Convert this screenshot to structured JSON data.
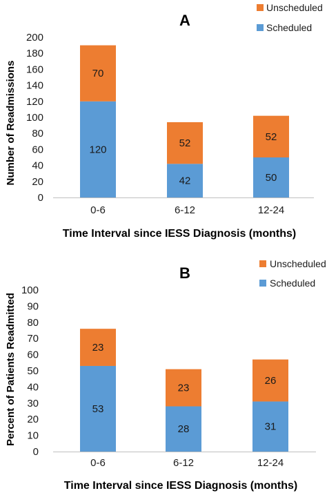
{
  "colors": {
    "scheduled": "#5b9bd5",
    "unscheduled": "#ed7d31",
    "axis": "#bfbfbf",
    "text": "#1a1a1a"
  },
  "chart_data": [
    {
      "type": "bar",
      "stacked": true,
      "title": "A",
      "xlabel": "Time Interval since IESS Diagnosis (months)",
      "ylabel": "Number of Readmissions",
      "categories": [
        "0-6",
        "6-12",
        "12-24"
      ],
      "ylim": [
        0,
        200
      ],
      "yticks": [
        0,
        20,
        40,
        60,
        80,
        100,
        120,
        140,
        160,
        180,
        200
      ],
      "grid": false,
      "legend_position": "top-right",
      "series": [
        {
          "name": "Scheduled",
          "color": "#5b9bd5",
          "values": [
            120,
            42,
            50
          ]
        },
        {
          "name": "Unscheduled",
          "color": "#ed7d31",
          "values": [
            70,
            52,
            52
          ]
        }
      ]
    },
    {
      "type": "bar",
      "stacked": true,
      "title": "B",
      "xlabel": "Time Interval since IESS Diagnosis (months)",
      "ylabel": "Percent of Patients Readmitted",
      "categories": [
        "0-6",
        "6-12",
        "12-24"
      ],
      "ylim": [
        0,
        100
      ],
      "yticks": [
        0,
        10,
        20,
        30,
        40,
        50,
        60,
        70,
        80,
        90,
        100
      ],
      "grid": false,
      "legend_position": "top-right",
      "series": [
        {
          "name": "Scheduled",
          "color": "#5b9bd5",
          "values": [
            53,
            28,
            31
          ]
        },
        {
          "name": "Unscheduled",
          "color": "#ed7d31",
          "values": [
            23,
            23,
            26
          ]
        }
      ]
    }
  ]
}
